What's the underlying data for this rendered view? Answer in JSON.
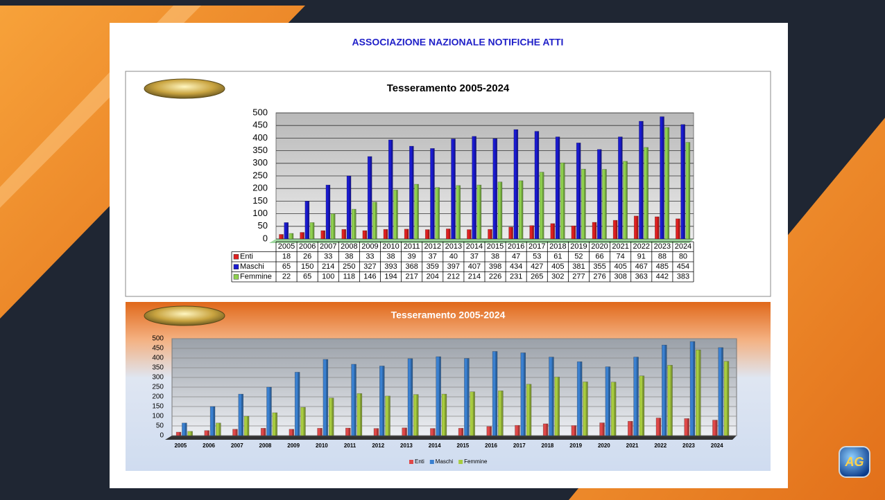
{
  "title": "ASSOCIAZIONE NAZIONALE NOTIFICHE ATTI",
  "corner_logo": "AG",
  "chart_data": [
    {
      "type": "bar",
      "title": "Tesseramento 2005-2024",
      "categories": [
        "2005",
        "2006",
        "2007",
        "2008",
        "2009",
        "2010",
        "2011",
        "2012",
        "2013",
        "2014",
        "2015",
        "2016",
        "2017",
        "2018",
        "2019",
        "2020",
        "2021",
        "2022",
        "2023",
        "2024"
      ],
      "series": [
        {
          "name": "Enti",
          "color": "#e02020",
          "values": [
            18,
            26,
            33,
            38,
            33,
            38,
            39,
            37,
            40,
            37,
            38,
            47,
            53,
            61,
            52,
            66,
            74,
            91,
            88,
            80
          ]
        },
        {
          "name": "Maschi",
          "color": "#1a1ad0",
          "values": [
            65,
            150,
            214,
            250,
            327,
            393,
            368,
            359,
            397,
            407,
            398,
            434,
            427,
            405,
            381,
            355,
            405,
            467,
            485,
            454
          ]
        },
        {
          "name": "Femmine",
          "color": "#8fd14f",
          "values": [
            22,
            65,
            100,
            118,
            146,
            194,
            217,
            204,
            212,
            214,
            226,
            231,
            265,
            302,
            277,
            276,
            308,
            363,
            442,
            383
          ]
        }
      ],
      "ylim": [
        0,
        500
      ],
      "yticks": [
        0,
        50,
        100,
        150,
        200,
        250,
        300,
        350,
        400,
        450,
        500
      ],
      "grid": true,
      "data_table": true
    },
    {
      "type": "bar",
      "title": "Tesseramento 2005-2024",
      "categories": [
        "2005",
        "2006",
        "2007",
        "2008",
        "2009",
        "2010",
        "2011",
        "2012",
        "2013",
        "2014",
        "2015",
        "2016",
        "2017",
        "2018",
        "2019",
        "2020",
        "2021",
        "2022",
        "2023",
        "2024"
      ],
      "series": [
        {
          "name": "Enti",
          "color": "#e04848",
          "values": [
            18,
            26,
            33,
            38,
            33,
            38,
            39,
            37,
            40,
            37,
            38,
            47,
            53,
            61,
            52,
            66,
            74,
            91,
            88,
            80
          ]
        },
        {
          "name": "Maschi",
          "color": "#3a80d0",
          "values": [
            65,
            150,
            214,
            250,
            327,
            393,
            368,
            359,
            397,
            407,
            398,
            434,
            427,
            405,
            381,
            355,
            405,
            467,
            485,
            454
          ]
        },
        {
          "name": "Femmine",
          "color": "#a8cc40",
          "values": [
            22,
            65,
            100,
            118,
            146,
            194,
            217,
            204,
            212,
            214,
            226,
            231,
            265,
            302,
            277,
            276,
            308,
            363,
            442,
            383
          ]
        }
      ],
      "ylim": [
        0,
        500
      ],
      "yticks": [
        0,
        50,
        100,
        150,
        200,
        250,
        300,
        350,
        400,
        450,
        500
      ],
      "grid": true,
      "legend": "bottom"
    }
  ]
}
